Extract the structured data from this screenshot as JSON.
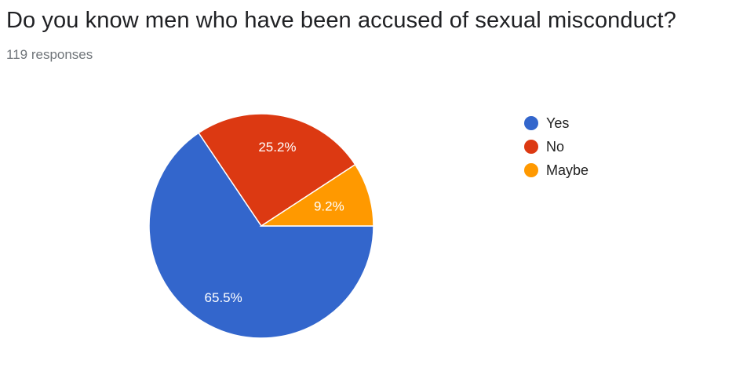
{
  "header": {
    "title": "Do you know men who have been accused of sexual misconduct?",
    "responses": "119 responses"
  },
  "chart_data": {
    "type": "pie",
    "title": "Do you know men who have been accused of sexual misconduct?",
    "categories": [
      "Yes",
      "No",
      "Maybe"
    ],
    "values": [
      65.5,
      25.2,
      9.2
    ],
    "labels": [
      "65.5%",
      "25.2%",
      "9.2%"
    ],
    "colors": [
      "#3366cc",
      "#dc3912",
      "#ff9900"
    ],
    "legend_position": "right"
  }
}
